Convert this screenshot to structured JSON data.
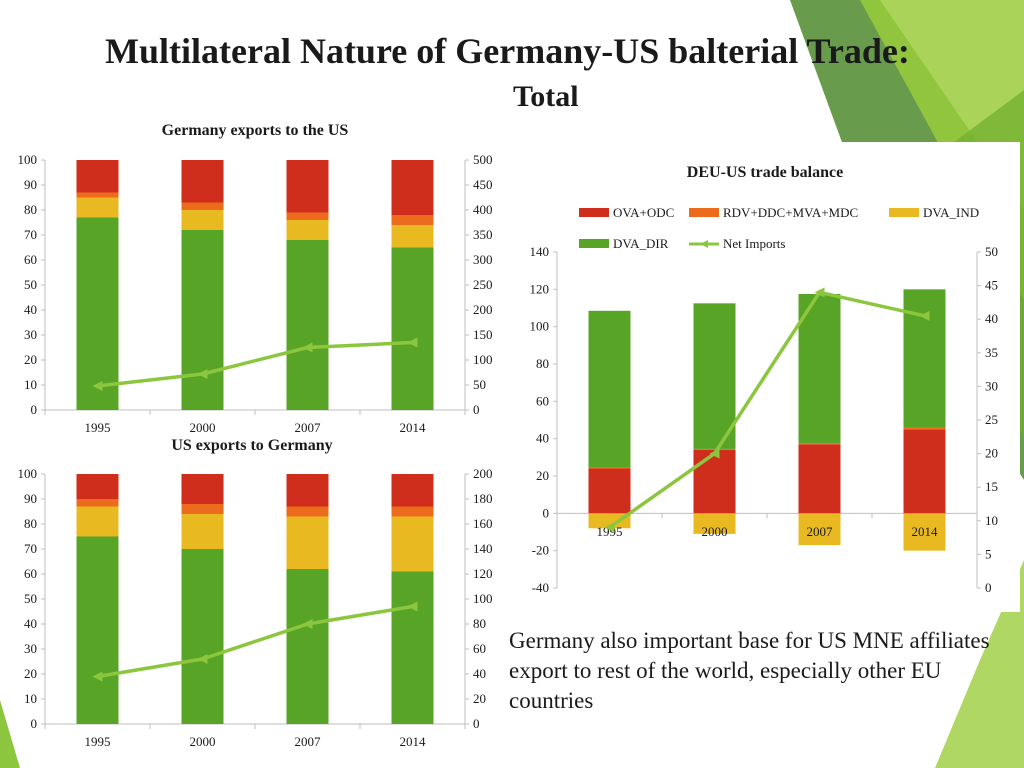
{
  "slide": {
    "title_line1": "Multilateral Nature of Germany-US balterial Trade:",
    "title_line2": "Total",
    "caption": "Germany also important base for US MNE affiliates export to rest of the world, especially other EU countries"
  },
  "colors": {
    "dva_dir": "#58a427",
    "dva_ind": "#e8b921",
    "rdv": "#ec6b1c",
    "ova": "#cf2e1c",
    "net": "#8cc63f",
    "deco_dark": "#4e8a2c",
    "deco_light": "#9acd3c"
  },
  "chart_data": [
    {
      "type": "bar",
      "stacked": true,
      "title": "Germany exports to the US",
      "categories": [
        "1995",
        "2000",
        "2007",
        "2014"
      ],
      "series": [
        {
          "values": [
            77,
            72,
            68,
            65
          ],
          "color": "#58a427"
        },
        {
          "values": [
            8,
            8,
            8,
            9
          ],
          "color": "#e8b921"
        },
        {
          "values": [
            2,
            3,
            3,
            4
          ],
          "color": "#ec6b1c"
        },
        {
          "values": [
            13,
            17,
            21,
            22
          ],
          "color": "#cf2e1c"
        }
      ],
      "line": {
        "values": [
          48,
          72,
          125,
          135
        ],
        "axis": "right",
        "color": "#8cc63f"
      },
      "ylim": [
        0,
        100
      ],
      "yticks": [
        0,
        10,
        20,
        30,
        40,
        50,
        60,
        70,
        80,
        90,
        100
      ],
      "y2lim": [
        0,
        500
      ],
      "y2ticks": [
        0,
        50,
        100,
        150,
        200,
        250,
        300,
        350,
        400,
        450,
        500
      ]
    },
    {
      "type": "bar",
      "stacked": true,
      "title": "US exports to Germany",
      "categories": [
        "1995",
        "2000",
        "2007",
        "2014"
      ],
      "series": [
        {
          "values": [
            75,
            70,
            62,
            61
          ],
          "color": "#58a427"
        },
        {
          "values": [
            12,
            14,
            21,
            22
          ],
          "color": "#e8b921"
        },
        {
          "values": [
            3,
            4,
            4,
            4
          ],
          "color": "#ec6b1c"
        },
        {
          "values": [
            10,
            12,
            13,
            13
          ],
          "color": "#cf2e1c"
        }
      ],
      "line": {
        "values": [
          38,
          52,
          80,
          94
        ],
        "axis": "right",
        "color": "#8cc63f"
      },
      "ylim": [
        0,
        100
      ],
      "yticks": [
        0,
        10,
        20,
        30,
        40,
        50,
        60,
        70,
        80,
        90,
        100
      ],
      "y2lim": [
        0,
        200
      ],
      "y2ticks": [
        0,
        20,
        40,
        60,
        80,
        100,
        120,
        140,
        160,
        180,
        200
      ]
    },
    {
      "type": "bar",
      "stacked": true,
      "title": "DEU-US trade balance",
      "legend": "top",
      "categories": [
        "1995",
        "2000",
        "2007",
        "2014"
      ],
      "series": [
        {
          "name": "OVA+ODC",
          "values": [
            24,
            34,
            37,
            45
          ],
          "color": "#cf2e1c"
        },
        {
          "name": "RDV+DDC+MVA+MDC",
          "values": [
            0.5,
            0.5,
            0.5,
            1
          ],
          "color": "#ec6b1c"
        },
        {
          "name": "DVA_IND",
          "values": [
            -8,
            -11,
            -17,
            -20
          ],
          "color": "#e8b921"
        },
        {
          "name": "DVA_DIR",
          "values": [
            84,
            78,
            80,
            74
          ],
          "color": "#58a427"
        },
        {
          "name": "Net Imports",
          "type": "line",
          "axis": "right",
          "values": [
            9,
            20,
            44,
            40.5
          ],
          "color": "#8cc63f"
        }
      ],
      "stack_order": [
        "DVA_DIR",
        "RDV+DDC+MVA+MDC",
        "OVA+ODC"
      ],
      "ylim": [
        -40,
        140
      ],
      "yticks": [
        -40,
        -20,
        0,
        20,
        40,
        60,
        80,
        100,
        120,
        140
      ],
      "y2lim": [
        0,
        50
      ],
      "y2ticks": [
        0,
        5,
        10,
        15,
        20,
        25,
        30,
        35,
        40,
        45,
        50
      ]
    }
  ]
}
